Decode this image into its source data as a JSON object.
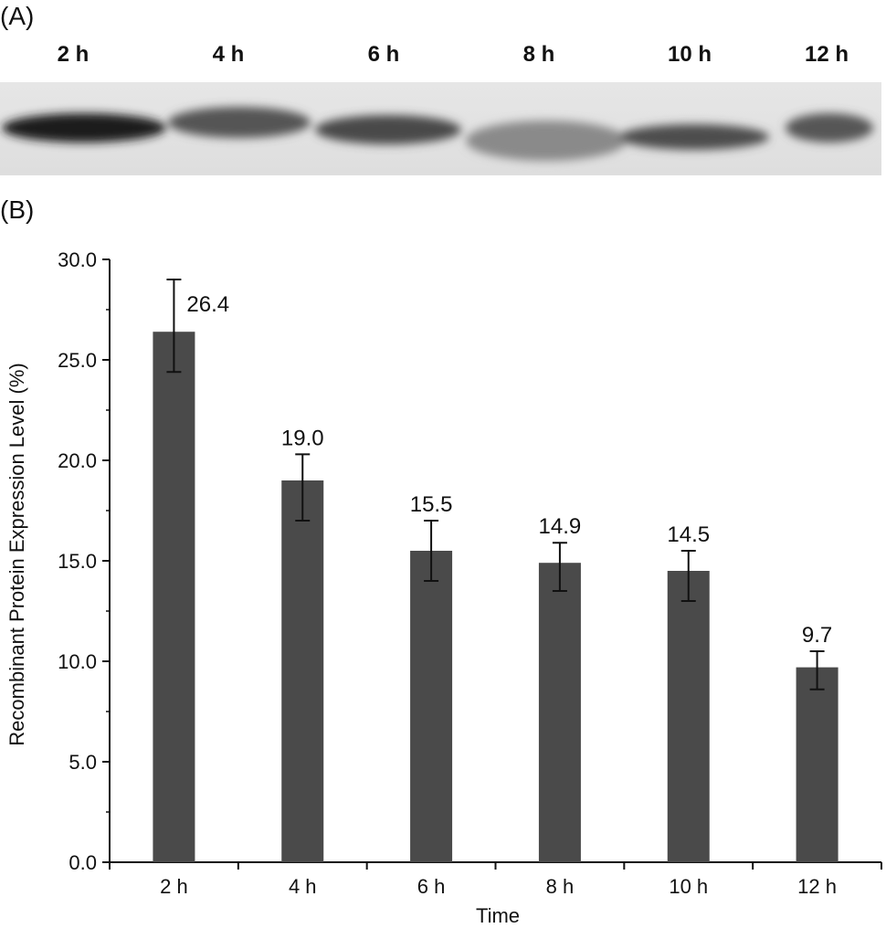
{
  "panel_a": {
    "label": "(A)",
    "lanes": [
      "2 h",
      "4 h",
      "6 h",
      "8 h",
      "10 h",
      "12 h"
    ]
  },
  "panel_b": {
    "label": "(B)"
  },
  "chart_data": {
    "type": "bar",
    "categories": [
      "2 h",
      "4 h",
      "6 h",
      "8 h",
      "10 h",
      "12 h"
    ],
    "values": [
      26.4,
      19.0,
      15.5,
      14.9,
      14.5,
      9.7
    ],
    "value_labels": [
      "26.4",
      "19.0",
      "15.5",
      "14.9",
      "14.5",
      "9.7"
    ],
    "error_upper": [
      29.0,
      20.3,
      17.0,
      15.9,
      15.5,
      10.5
    ],
    "error_lower": [
      24.4,
      17.0,
      14.0,
      13.5,
      13.0,
      8.6
    ],
    "ylabel": "Recombinant Protein Expression Level (%)",
    "xlabel": "Time",
    "ylim": [
      0,
      30
    ],
    "yticks": [
      0,
      5,
      10,
      15,
      20,
      25,
      30
    ],
    "ytick_labels": [
      "0.0",
      "5.0",
      "10.0",
      "15.0",
      "20.0",
      "25.0",
      "30.0"
    ],
    "bar_color": "#4a4a4a"
  }
}
